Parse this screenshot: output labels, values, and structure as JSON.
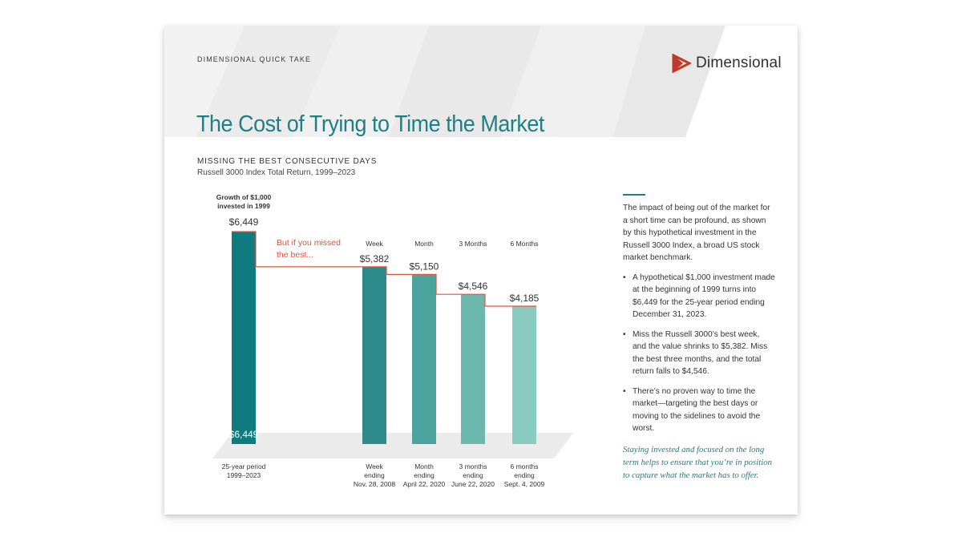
{
  "document": {
    "eyebrow": "DIMENSIONAL QUICK TAKE",
    "brand_name": "Dimensional",
    "title": "The Cost of Trying to Time the Market",
    "accent_color": "#1f7f85",
    "brand_color": "#c0392b"
  },
  "chart_data": {
    "type": "bar",
    "title": "MISSING THE BEST CONSECUTIVE DAYS",
    "subtitle": "Russell 3000 Index Total Return, 1999–2023",
    "annotation": "But if you missed the best...",
    "full_period": {
      "header": "Growth of $1,000 invested in 1999",
      "value": 6449,
      "value_label": "$6,449",
      "bottom_label": "$6,449",
      "category_label": "25-year period 1999–2023",
      "color": "#0f7b7f"
    },
    "bars": [
      {
        "header": "Week",
        "value": 5382,
        "value_label": "$5,382",
        "category_label": "Week ending Nov. 28, 2008",
        "color": "#2e8b8b"
      },
      {
        "header": "Month",
        "value": 5150,
        "value_label": "$5,150",
        "category_label": "Month ending April 22, 2020",
        "color": "#4aa39d"
      },
      {
        "header": "3 Months",
        "value": 4546,
        "value_label": "$4,546",
        "category_label": "3 months ending June 22, 2020",
        "color": "#6cb8ae"
      },
      {
        "header": "6 Months",
        "value": 4185,
        "value_label": "$4,185",
        "category_label": "6 months ending Sept. 4, 2009",
        "color": "#89cbbf"
      }
    ],
    "ylim": [
      0,
      6449
    ],
    "step_line_color": "#e1533d"
  },
  "sidebar": {
    "intro": "The impact of being out of the market for a short time can be profound, as shown by this hypothetical investment in the Russell 3000 Index, a broad US stock market benchmark.",
    "bullets": [
      "A hypothetical $1,000 investment made at the beginning of 1999 turns into $6,449 for the 25-year period ending December 31, 2023.",
      "Miss the Russell 3000’s best week, and the value shrinks to $5,382. Miss the best three months, and the total return falls to $4,546.",
      "There’s no proven way to time the market—targeting the best days or moving to the sidelines to avoid the worst."
    ],
    "closing": "Staying invested and focused on the long term helps to ensure that you’re in position to capture what the market has to offer."
  }
}
